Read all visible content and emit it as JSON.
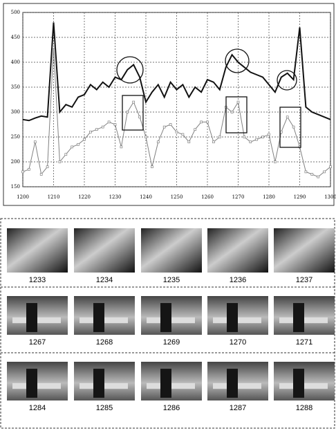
{
  "chart_data": {
    "type": "line",
    "x": [
      1200,
      1202,
      1204,
      1206,
      1208,
      1210,
      1212,
      1214,
      1216,
      1218,
      1220,
      1222,
      1224,
      1226,
      1228,
      1230,
      1232,
      1234,
      1236,
      1238,
      1240,
      1242,
      1244,
      1246,
      1248,
      1250,
      1252,
      1254,
      1256,
      1258,
      1260,
      1262,
      1264,
      1266,
      1268,
      1270,
      1272,
      1274,
      1276,
      1278,
      1280,
      1282,
      1284,
      1286,
      1288,
      1290,
      1292,
      1294,
      1296,
      1298,
      1300
    ],
    "series": [
      {
        "color": "#111111",
        "values": [
          285,
          283,
          288,
          292,
          290,
          480,
          300,
          315,
          310,
          330,
          335,
          355,
          345,
          360,
          350,
          370,
          365,
          385,
          395,
          370,
          320,
          340,
          355,
          330,
          360,
          345,
          355,
          330,
          350,
          340,
          365,
          360,
          345,
          390,
          415,
          400,
          390,
          380,
          375,
          370,
          355,
          340,
          370,
          378,
          365,
          470,
          310,
          300,
          295,
          290,
          285
        ]
      },
      {
        "color": "#808080",
        "values": [
          180,
          185,
          240,
          175,
          190,
          430,
          200,
          215,
          230,
          235,
          245,
          260,
          265,
          270,
          280,
          275,
          230,
          300,
          320,
          290,
          250,
          190,
          240,
          270,
          275,
          260,
          255,
          240,
          265,
          280,
          280,
          240,
          250,
          310,
          300,
          320,
          250,
          240,
          245,
          250,
          255,
          200,
          260,
          290,
          270,
          230,
          180,
          175,
          170,
          180,
          190
        ]
      }
    ],
    "xlim": [
      1200,
      1300
    ],
    "xticks": [
      1200,
      1210,
      1220,
      1230,
      1240,
      1250,
      1260,
      1270,
      1280,
      1290,
      1300
    ],
    "ylim": [
      150,
      500
    ],
    "yticks": [
      150,
      200,
      250,
      300,
      350,
      400,
      450,
      500
    ],
    "grid": true
  },
  "frames": {
    "rows": [
      [
        "1233",
        "1234",
        "1235",
        "1236",
        "1237"
      ],
      [
        "1267",
        "1268",
        "1269",
        "1270",
        "1271"
      ],
      [
        "1284",
        "1285",
        "1286",
        "1287",
        "1288"
      ]
    ]
  }
}
